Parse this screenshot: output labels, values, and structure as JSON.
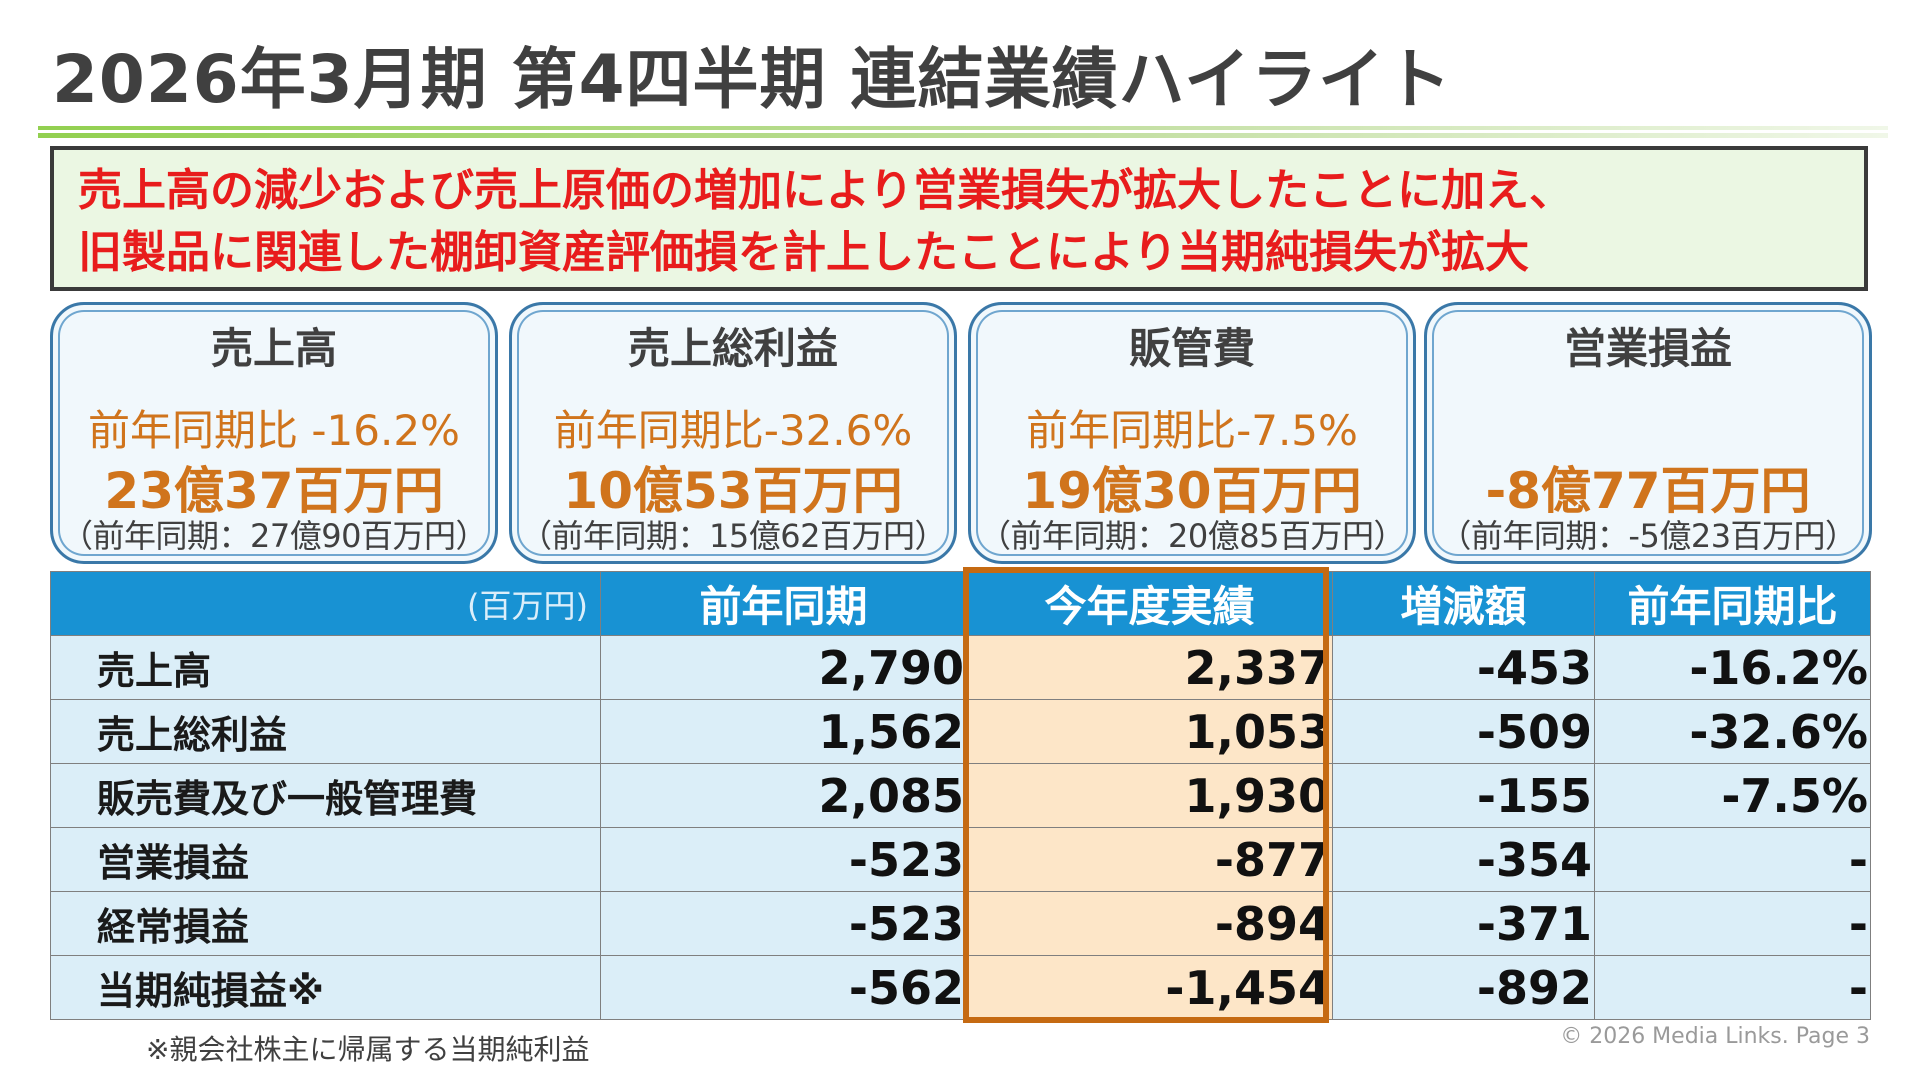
{
  "header": {
    "title": "2026年3月期 第4四半期 連結業績ハイライト"
  },
  "summary": {
    "lines": [
      "売上高の減少および売上原価の増加により営業損失が拡大したことに加え、",
      "旧製品に関連した棚卸資産評価損を計上したことにより当期純損失が拡大"
    ]
  },
  "kpis": [
    {
      "title": "売上高",
      "ratio": "前年同期比 -16.2%",
      "value": "23億37百万円",
      "prev": "（前年同期：27億90百万円）"
    },
    {
      "title": "売上総利益",
      "ratio": "前年同期比-32.6%",
      "value": "10億53百万円",
      "prev": "（前年同期：15億62百万円）"
    },
    {
      "title": "販管費",
      "ratio": "前年同期比-7.5%",
      "value": "19億30百万円",
      "prev": "（前年同期：20億85百万円）"
    },
    {
      "title": "営業損益",
      "ratio": "",
      "value": "-8億77百万円",
      "prev": "（前年同期：-5億23百万円）"
    }
  ],
  "table": {
    "unit": "(百万円)",
    "headers": [
      "前年同期",
      "今年度実績",
      "増減額",
      "前年同期比"
    ],
    "rows": [
      {
        "label": "売上高",
        "prev": "2,790",
        "current": "2,337",
        "change": "-453",
        "ratio": "-16.2%"
      },
      {
        "label": "売上総利益",
        "prev": "1,562",
        "current": "1,053",
        "change": "-509",
        "ratio": "-32.6%"
      },
      {
        "label": "販売費及び一般管理費",
        "prev": "2,085",
        "current": "1,930",
        "change": "-155",
        "ratio": "-7.5%"
      },
      {
        "label": "営業損益",
        "prev": "-523",
        "current": "-877",
        "change": "-354",
        "ratio": "-"
      },
      {
        "label": "経常損益",
        "prev": "-523",
        "current": "-894",
        "change": "-371",
        "ratio": "-"
      },
      {
        "label": "当期純損益※",
        "prev": "-562",
        "current": "-1,454",
        "change": "-892",
        "ratio": "-"
      }
    ]
  },
  "footnote": "※親会社株主に帰属する当期純利益",
  "copyright": "© 2026 Media  Links. Page 3",
  "colors": {
    "title": "#404040",
    "summary_text": "#e81c1c",
    "summary_bg": "#ebf7e3",
    "kpi_accent": "#d0741c",
    "table_header": "#1892d3",
    "table_row": "#dbeef8",
    "highlight_fill": "#fde6c8",
    "highlight_border": "#c56a12"
  }
}
